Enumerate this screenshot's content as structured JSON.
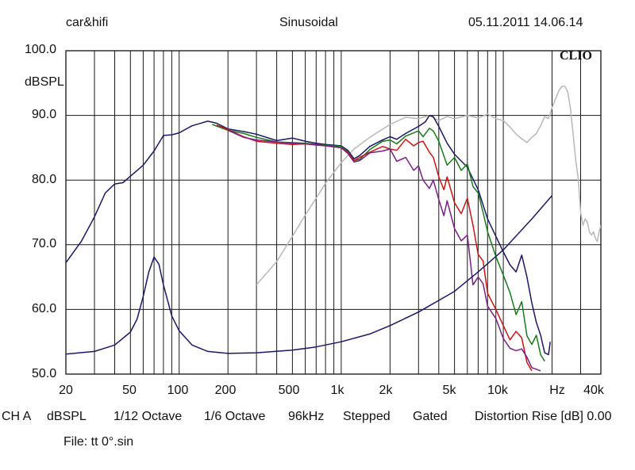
{
  "header": {
    "left": "car&hifi",
    "center": "Sinusoidal",
    "right": "05.11.2011 14.06.14"
  },
  "brand": "CLIO",
  "y_unit_label": "dBSPL",
  "footer": {
    "items": [
      "CH A",
      "dBSPL",
      "1/12 Octave",
      "1/6 Octave",
      "96kHz",
      "Stepped",
      "Gated",
      "Distortion Rise [dB] 0.00"
    ],
    "file": "File: tt 0°.sin"
  },
  "chart_data": {
    "type": "line",
    "x_scale": "log",
    "xlim": [
      20,
      40000
    ],
    "ylim": [
      50,
      100
    ],
    "grid": true,
    "x_tick_labels": [
      {
        "f": 20,
        "label": "20"
      },
      {
        "f": 50,
        "label": "50"
      },
      {
        "f": 100,
        "label": "100"
      },
      {
        "f": 200,
        "label": "200"
      },
      {
        "f": 500,
        "label": "500"
      },
      {
        "f": 1000,
        "label": "1k"
      },
      {
        "f": 2000,
        "label": "2k"
      },
      {
        "f": 5000,
        "label": "5k"
      },
      {
        "f": 10000,
        "label": "10k"
      },
      {
        "f": 20000,
        "label": "Hz"
      },
      {
        "f": 40000,
        "label": "40k"
      }
    ],
    "y_tick_labels": [
      {
        "v": 100,
        "label": "100.0"
      },
      {
        "v": 90,
        "label": "90.0"
      },
      {
        "v": 80,
        "label": "80.0"
      },
      {
        "v": 70,
        "label": "70.0"
      },
      {
        "v": 60,
        "label": "60.0"
      },
      {
        "v": 50,
        "label": "50.0"
      }
    ],
    "series": [
      {
        "color": "#b8b8b8",
        "points": [
          [
            300,
            63.8
          ],
          [
            400,
            67.4
          ],
          [
            500,
            71.3
          ],
          [
            600,
            74.6
          ],
          [
            700,
            77.2
          ],
          [
            800,
            79.5
          ],
          [
            900,
            81.2
          ],
          [
            1000,
            82.7
          ],
          [
            1200,
            84.8
          ],
          [
            1500,
            86.6
          ],
          [
            2000,
            88.6
          ],
          [
            2500,
            89.7
          ],
          [
            3000,
            89.5
          ],
          [
            3500,
            90
          ],
          [
            4000,
            89.2
          ],
          [
            4500,
            89.8
          ],
          [
            5000,
            89.5
          ],
          [
            6000,
            90
          ],
          [
            7000,
            89.6
          ],
          [
            8000,
            90.2
          ],
          [
            9000,
            89.5
          ],
          [
            10000,
            89.2
          ],
          [
            11000,
            88.2
          ],
          [
            12000,
            87.1
          ],
          [
            13000,
            86.4
          ],
          [
            14000,
            85.8
          ],
          [
            15000,
            86.6
          ],
          [
            16000,
            87.2
          ],
          [
            17000,
            88.4
          ],
          [
            18000,
            89.8
          ],
          [
            19000,
            89.5
          ],
          [
            20000,
            91.2
          ],
          [
            22000,
            93.8
          ],
          [
            23000,
            94.5
          ],
          [
            24000,
            94.5
          ],
          [
            25000,
            93.6
          ],
          [
            26000,
            91
          ],
          [
            27000,
            87
          ],
          [
            28000,
            83
          ],
          [
            29000,
            80.2
          ],
          [
            30000,
            75
          ],
          [
            31000,
            73
          ],
          [
            32000,
            74
          ],
          [
            33000,
            73.5
          ],
          [
            34000,
            72
          ],
          [
            35000,
            71.5
          ],
          [
            36000,
            72
          ],
          [
            37000,
            71
          ],
          [
            38000,
            70.5
          ],
          [
            39000,
            72
          ],
          [
            40000,
            73
          ]
        ]
      },
      {
        "color": "#1a1866",
        "points": [
          [
            20,
            67.2
          ],
          [
            25,
            70.6
          ],
          [
            30,
            74.3
          ],
          [
            35,
            78
          ],
          [
            40,
            79.4
          ],
          [
            45,
            79.6
          ],
          [
            50,
            80.6
          ],
          [
            60,
            82.3
          ],
          [
            70,
            84.5
          ],
          [
            80,
            86.9
          ],
          [
            90,
            87
          ],
          [
            100,
            87.3
          ],
          [
            120,
            88.4
          ],
          [
            150,
            89.1
          ],
          [
            170,
            88.8
          ],
          [
            200,
            87.9
          ],
          [
            250,
            87.5
          ],
          [
            300,
            87.1
          ],
          [
            400,
            86.1
          ],
          [
            500,
            86.5
          ],
          [
            600,
            86
          ],
          [
            700,
            85.7
          ],
          [
            800,
            85.5
          ],
          [
            1000,
            85.3
          ],
          [
            1100,
            84.6
          ],
          [
            1200,
            83.3
          ],
          [
            1300,
            83.8
          ],
          [
            1500,
            85.2
          ],
          [
            1800,
            86.2
          ],
          [
            2000,
            86.7
          ],
          [
            2200,
            86.3
          ],
          [
            2500,
            87.2
          ],
          [
            3000,
            88.3
          ],
          [
            3300,
            89
          ],
          [
            3500,
            90
          ],
          [
            3700,
            89.8
          ],
          [
            4000,
            88.3
          ],
          [
            4500,
            85.7
          ],
          [
            5000,
            84
          ],
          [
            6000,
            82
          ],
          [
            7000,
            78.5
          ],
          [
            8000,
            74
          ],
          [
            9000,
            71.3
          ],
          [
            10000,
            68.9
          ],
          [
            11000,
            66.9
          ],
          [
            12000,
            65.8
          ],
          [
            13000,
            68.4
          ],
          [
            14000,
            65
          ],
          [
            15000,
            61
          ],
          [
            16000,
            58
          ],
          [
            17000,
            56
          ],
          [
            18000,
            53.3
          ],
          [
            19000,
            53
          ],
          [
            19500,
            55
          ]
        ]
      },
      {
        "color": "#177a1c",
        "points": [
          [
            160,
            88.6
          ],
          [
            200,
            87.7
          ],
          [
            250,
            87.2
          ],
          [
            300,
            86.6
          ],
          [
            400,
            85.9
          ],
          [
            500,
            85.8
          ],
          [
            600,
            85.7
          ],
          [
            700,
            85.5
          ],
          [
            800,
            85.4
          ],
          [
            1000,
            85.2
          ],
          [
            1100,
            84.4
          ],
          [
            1200,
            83
          ],
          [
            1300,
            83.2
          ],
          [
            1500,
            84.7
          ],
          [
            1800,
            86
          ],
          [
            2000,
            86.2
          ],
          [
            2200,
            85.6
          ],
          [
            2500,
            86.8
          ],
          [
            3000,
            87.6
          ],
          [
            3200,
            86.7
          ],
          [
            3500,
            88
          ],
          [
            3700,
            87.6
          ],
          [
            4000,
            86
          ],
          [
            4500,
            82.3
          ],
          [
            5000,
            83.5
          ],
          [
            5500,
            81.5
          ],
          [
            6000,
            82.5
          ],
          [
            6500,
            79
          ],
          [
            7000,
            78
          ],
          [
            7500,
            75
          ],
          [
            8000,
            72
          ],
          [
            9000,
            68.2
          ],
          [
            10000,
            65.3
          ],
          [
            11000,
            62.6
          ],
          [
            12000,
            59.2
          ],
          [
            13000,
            61.2
          ],
          [
            14000,
            55.9
          ],
          [
            15000,
            54.6
          ],
          [
            16000,
            56
          ],
          [
            17000,
            53
          ],
          [
            18000,
            52
          ]
        ]
      },
      {
        "color": "#cc1414",
        "points": [
          [
            170,
            88.5
          ],
          [
            200,
            87.8
          ],
          [
            250,
            86.7
          ],
          [
            300,
            86
          ],
          [
            400,
            85.7
          ],
          [
            500,
            85.5
          ],
          [
            600,
            85.6
          ],
          [
            700,
            85.4
          ],
          [
            800,
            85.3
          ],
          [
            1000,
            85
          ],
          [
            1100,
            84.3
          ],
          [
            1200,
            83
          ],
          [
            1300,
            83.5
          ],
          [
            1500,
            84.3
          ],
          [
            1800,
            85.2
          ],
          [
            2000,
            84.8
          ],
          [
            2200,
            84.6
          ],
          [
            2500,
            86.3
          ],
          [
            2800,
            85.3
          ],
          [
            3000,
            85.8
          ],
          [
            3200,
            86
          ],
          [
            3500,
            84.3
          ],
          [
            3700,
            83.5
          ],
          [
            4000,
            80.5
          ],
          [
            4300,
            78.5
          ],
          [
            4500,
            80.5
          ],
          [
            5000,
            76.5
          ],
          [
            5500,
            74.8
          ],
          [
            6000,
            77.2
          ],
          [
            6500,
            73
          ],
          [
            7000,
            68.5
          ],
          [
            7500,
            67.5
          ],
          [
            8000,
            62.5
          ],
          [
            9000,
            60
          ],
          [
            10000,
            57.5
          ],
          [
            11000,
            55.3
          ],
          [
            12000,
            56.6
          ],
          [
            13000,
            55.6
          ],
          [
            14000,
            51.8
          ],
          [
            15000,
            50.5
          ]
        ]
      },
      {
        "color": "#7a1f87",
        "points": [
          [
            200,
            87.7
          ],
          [
            250,
            86.6
          ],
          [
            300,
            86.2
          ],
          [
            400,
            85.9
          ],
          [
            500,
            85.7
          ],
          [
            600,
            85.6
          ],
          [
            700,
            85.5
          ],
          [
            800,
            85.3
          ],
          [
            1000,
            85
          ],
          [
            1100,
            84.1
          ],
          [
            1200,
            82.8
          ],
          [
            1300,
            83
          ],
          [
            1500,
            84.2
          ],
          [
            1800,
            84.5
          ],
          [
            2000,
            84.8
          ],
          [
            2200,
            82.9
          ],
          [
            2500,
            83.5
          ],
          [
            2800,
            81.5
          ],
          [
            3000,
            82.2
          ],
          [
            3200,
            80
          ],
          [
            3500,
            78.7
          ],
          [
            3700,
            80
          ],
          [
            4000,
            77
          ],
          [
            4300,
            74.5
          ],
          [
            4500,
            76.8
          ],
          [
            5000,
            72.5
          ],
          [
            5500,
            70.6
          ],
          [
            6000,
            71.5
          ],
          [
            6500,
            63.8
          ],
          [
            7000,
            65
          ],
          [
            7500,
            64
          ],
          [
            8000,
            60.5
          ],
          [
            9000,
            58.6
          ],
          [
            10000,
            55.5
          ],
          [
            11000,
            54
          ],
          [
            12000,
            53.6
          ],
          [
            13000,
            53.9
          ],
          [
            14000,
            52.6
          ],
          [
            15000,
            51
          ],
          [
            17000,
            50.5
          ]
        ]
      },
      {
        "color": "#1a1866",
        "points": [
          [
            20,
            53.1
          ],
          [
            30,
            53.5
          ],
          [
            40,
            54.5
          ],
          [
            50,
            56.5
          ],
          [
            55,
            58.5
          ],
          [
            60,
            62
          ],
          [
            65,
            65.8
          ],
          [
            70,
            68.1
          ],
          [
            75,
            67
          ],
          [
            80,
            63.8
          ],
          [
            90,
            59
          ],
          [
            100,
            56.7
          ],
          [
            120,
            54.5
          ],
          [
            150,
            53.5
          ],
          [
            200,
            53.2
          ],
          [
            300,
            53.3
          ],
          [
            500,
            53.7
          ],
          [
            700,
            54.2
          ],
          [
            1000,
            55
          ],
          [
            1500,
            56.2
          ],
          [
            2000,
            57.5
          ],
          [
            3000,
            59.6
          ],
          [
            5000,
            62.8
          ],
          [
            7000,
            65.8
          ],
          [
            10000,
            69.2
          ],
          [
            15000,
            74
          ],
          [
            20000,
            77.6
          ]
        ]
      }
    ]
  }
}
